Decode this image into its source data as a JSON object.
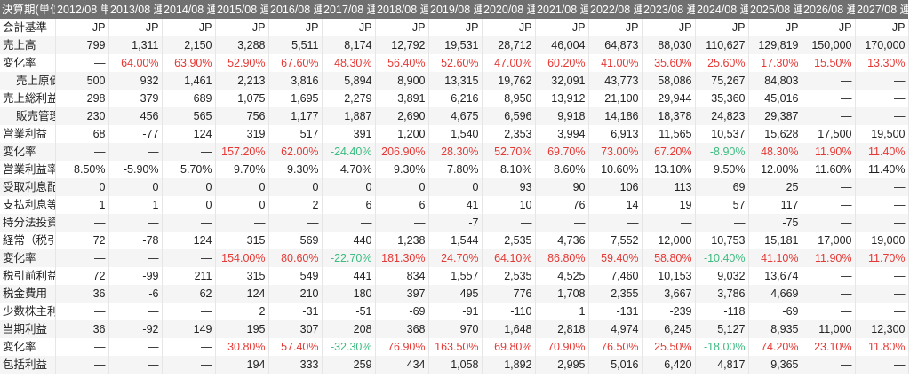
{
  "header": {
    "label": "決算期(単位",
    "periods": [
      "2012/08 単",
      "2013/08 連",
      "2014/08 連",
      "2015/08 連",
      "2016/08 連",
      "2017/08 連",
      "2018/08 連",
      "2019/08 連",
      "2020/08 連",
      "2021/08 連",
      "2022/08 連",
      "2023/08 連",
      "2024/08 連",
      "2025/08 連",
      "2026/08 連",
      "2027/08 連"
    ]
  },
  "colors": {
    "header_bg": "#707070",
    "positive_rate": "#e53935",
    "negative_rate": "#3dbb80"
  },
  "rows": [
    {
      "label": "会計基準",
      "indent": false,
      "type": "text",
      "values": [
        "JP",
        "JP",
        "JP",
        "JP",
        "JP",
        "JP",
        "JP",
        "JP",
        "JP",
        "JP",
        "JP",
        "JP",
        "JP",
        "JP",
        "JP",
        "JP"
      ]
    },
    {
      "label": "売上高",
      "indent": false,
      "type": "num",
      "values": [
        "799",
        "1,311",
        "2,150",
        "3,288",
        "5,511",
        "8,174",
        "12,792",
        "19,531",
        "28,712",
        "46,004",
        "64,873",
        "88,030",
        "110,627",
        "129,819",
        "150,000",
        "170,000"
      ]
    },
    {
      "label": "変化率",
      "indent": false,
      "type": "rate",
      "values": [
        "—",
        "64.00%",
        "63.90%",
        "52.90%",
        "67.60%",
        "48.30%",
        "56.40%",
        "52.60%",
        "47.00%",
        "60.20%",
        "41.00%",
        "35.60%",
        "25.60%",
        "17.30%",
        "15.50%",
        "13.30%"
      ]
    },
    {
      "label": "売上原価",
      "indent": true,
      "type": "num",
      "values": [
        "500",
        "932",
        "1,461",
        "2,213",
        "3,816",
        "5,894",
        "8,900",
        "13,315",
        "19,762",
        "32,091",
        "43,773",
        "58,086",
        "75,267",
        "84,803",
        "—",
        "—"
      ]
    },
    {
      "label": "売上総利益",
      "indent": false,
      "type": "num",
      "values": [
        "298",
        "379",
        "689",
        "1,075",
        "1,695",
        "2,279",
        "3,891",
        "6,216",
        "8,950",
        "13,912",
        "21,100",
        "29,944",
        "35,360",
        "45,016",
        "—",
        "—"
      ]
    },
    {
      "label": "販売管理",
      "indent": true,
      "type": "num",
      "values": [
        "230",
        "456",
        "565",
        "756",
        "1,177",
        "1,887",
        "2,690",
        "4,675",
        "6,596",
        "9,918",
        "14,186",
        "18,378",
        "24,823",
        "29,387",
        "—",
        "—"
      ]
    },
    {
      "label": "営業利益",
      "indent": false,
      "type": "num",
      "values": [
        "68",
        "-77",
        "124",
        "319",
        "517",
        "391",
        "1,200",
        "1,540",
        "2,353",
        "3,994",
        "6,913",
        "11,565",
        "10,537",
        "15,628",
        "17,500",
        "19,500"
      ]
    },
    {
      "label": "変化率",
      "indent": false,
      "type": "rate",
      "values": [
        "—",
        "—",
        "—",
        "157.20%",
        "62.00%",
        "-24.40%",
        "206.90%",
        "28.30%",
        "52.70%",
        "69.70%",
        "73.00%",
        "67.20%",
        "-8.90%",
        "48.30%",
        "11.90%",
        "11.40%"
      ]
    },
    {
      "label": "営業利益率",
      "indent": false,
      "type": "num",
      "values": [
        "8.50%",
        "-5.90%",
        "5.70%",
        "9.70%",
        "9.30%",
        "4.70%",
        "9.30%",
        "7.80%",
        "8.10%",
        "8.60%",
        "10.60%",
        "13.10%",
        "9.50%",
        "12.00%",
        "11.60%",
        "11.40%"
      ]
    },
    {
      "label": "受取利息配",
      "indent": false,
      "type": "num",
      "values": [
        "0",
        "0",
        "0",
        "0",
        "0",
        "0",
        "0",
        "0",
        "93",
        "90",
        "106",
        "113",
        "69",
        "25",
        "—",
        "—"
      ]
    },
    {
      "label": "支払利息等",
      "indent": false,
      "type": "num",
      "values": [
        "1",
        "1",
        "0",
        "0",
        "2",
        "6",
        "6",
        "41",
        "10",
        "76",
        "14",
        "19",
        "57",
        "117",
        "—",
        "—"
      ]
    },
    {
      "label": "持分法投資",
      "indent": false,
      "type": "num",
      "values": [
        "—",
        "—",
        "—",
        "—",
        "—",
        "—",
        "—",
        "-7",
        "—",
        "—",
        "—",
        "—",
        "—",
        "-75",
        "—",
        "—"
      ]
    },
    {
      "label": "経常（税引",
      "indent": false,
      "type": "num",
      "values": [
        "72",
        "-78",
        "124",
        "315",
        "569",
        "440",
        "1,238",
        "1,544",
        "2,535",
        "4,736",
        "7,552",
        "12,000",
        "10,753",
        "15,181",
        "17,000",
        "19,000"
      ]
    },
    {
      "label": "変化率",
      "indent": false,
      "type": "rate",
      "values": [
        "—",
        "—",
        "—",
        "154.00%",
        "80.60%",
        "-22.70%",
        "181.30%",
        "24.70%",
        "64.10%",
        "86.80%",
        "59.40%",
        "58.80%",
        "-10.40%",
        "41.10%",
        "11.90%",
        "11.70%"
      ]
    },
    {
      "label": "税引前利益",
      "indent": false,
      "type": "num",
      "values": [
        "72",
        "-99",
        "211",
        "315",
        "549",
        "441",
        "834",
        "1,557",
        "2,535",
        "4,525",
        "7,460",
        "10,153",
        "9,032",
        "13,674",
        "—",
        "—"
      ]
    },
    {
      "label": "税金費用",
      "indent": false,
      "type": "num",
      "values": [
        "36",
        "-6",
        "62",
        "124",
        "210",
        "180",
        "397",
        "495",
        "776",
        "1,708",
        "2,355",
        "3,667",
        "3,786",
        "4,669",
        "—",
        "—"
      ]
    },
    {
      "label": "少数株主利",
      "indent": false,
      "type": "num",
      "values": [
        "—",
        "—",
        "—",
        "2",
        "-31",
        "-51",
        "-69",
        "-91",
        "-110",
        "1",
        "-131",
        "-239",
        "-118",
        "-69",
        "—",
        "—"
      ]
    },
    {
      "label": "当期利益",
      "indent": false,
      "type": "num",
      "values": [
        "36",
        "-92",
        "149",
        "195",
        "307",
        "208",
        "368",
        "970",
        "1,648",
        "2,818",
        "4,974",
        "6,245",
        "5,127",
        "8,935",
        "11,000",
        "12,300"
      ]
    },
    {
      "label": "変化率",
      "indent": false,
      "type": "rate",
      "values": [
        "—",
        "—",
        "—",
        "30.80%",
        "57.40%",
        "-32.30%",
        "76.90%",
        "163.50%",
        "69.80%",
        "70.90%",
        "76.50%",
        "25.50%",
        "-18.00%",
        "74.20%",
        "23.10%",
        "11.80%"
      ]
    },
    {
      "label": "包括利益",
      "indent": false,
      "type": "num",
      "values": [
        "—",
        "—",
        "—",
        "194",
        "333",
        "259",
        "434",
        "1,058",
        "1,892",
        "2,995",
        "5,016",
        "6,420",
        "4,817",
        "9,365",
        "—",
        "—"
      ]
    }
  ]
}
